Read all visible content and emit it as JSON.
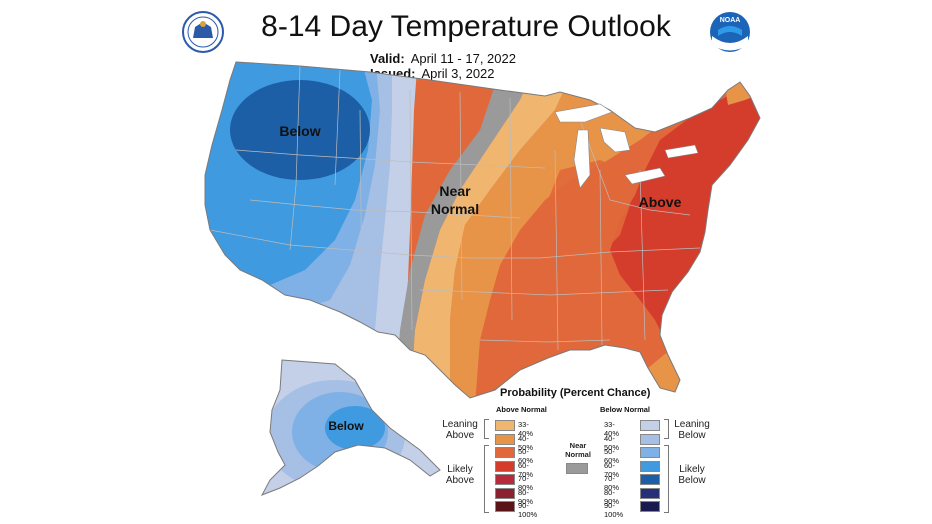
{
  "title": "8-14 Day Temperature Outlook",
  "valid": {
    "label": "Valid:",
    "value": "April 11 - 17, 2022"
  },
  "issued": {
    "label": "Issued:",
    "value": "April 3, 2022"
  },
  "map_labels": {
    "below_west": "Below",
    "near_normal_1": "Near",
    "near_normal_2": "Normal",
    "above_east": "Above",
    "below_alaska": "Below"
  },
  "logos": {
    "left": "commerce-seal",
    "right": "noaa-logo"
  },
  "legend": {
    "title": "Probability (Percent Chance)",
    "above_head": "Above Normal",
    "below_head": "Below Normal",
    "near_head_1": "Near",
    "near_head_2": "Normal",
    "leaning_above_1": "Leaning",
    "leaning_above_2": "Above",
    "likely_above_1": "Likely",
    "likely_above_2": "Above",
    "leaning_below_1": "Leaning",
    "leaning_below_2": "Below",
    "likely_below_1": "Likely",
    "likely_below_2": "Below",
    "above": [
      {
        "label": "33-40%",
        "color": "#f0b670"
      },
      {
        "label": "40-50%",
        "color": "#e89448"
      },
      {
        "label": "50-60%",
        "color": "#e0683a"
      },
      {
        "label": "60-70%",
        "color": "#d43c2c"
      },
      {
        "label": "70-80%",
        "color": "#b8293a"
      },
      {
        "label": "80-90%",
        "color": "#8a2130"
      },
      {
        "label": "90-100%",
        "color": "#5a1418"
      }
    ],
    "below": [
      {
        "label": "33-40%",
        "color": "#c4cfe8"
      },
      {
        "label": "40-50%",
        "color": "#a6bfe4"
      },
      {
        "label": "50-60%",
        "color": "#7fb0e6"
      },
      {
        "label": "60-70%",
        "color": "#3f9ae0"
      },
      {
        "label": "70-80%",
        "color": "#1c5fa6"
      },
      {
        "label": "80-90%",
        "color": "#26307a"
      },
      {
        "label": "90-100%",
        "color": "#1a1a50"
      }
    ],
    "near_color": "#9a9a9a"
  }
}
